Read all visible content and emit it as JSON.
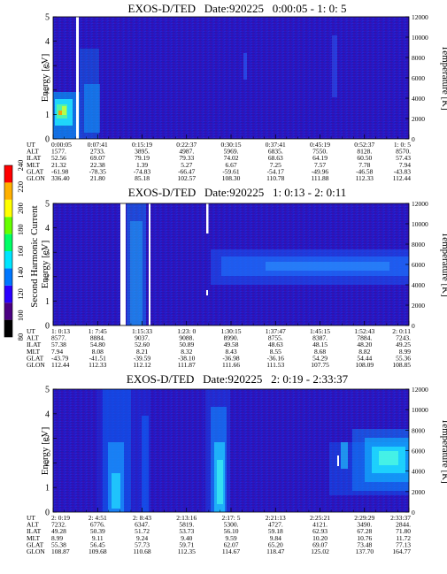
{
  "colorbar": {
    "label": "Second Harmonic Current",
    "ticks": [
      "80",
      "100",
      "120",
      "140",
      "160",
      "180",
      "200",
      "220",
      "240"
    ],
    "min": 80,
    "max": 240,
    "colors": [
      "#000000",
      "#4b0082",
      "#2a00ff",
      "#0077ff",
      "#00e5ff",
      "#00ff66",
      "#66ff00",
      "#ffff00",
      "#ffb000",
      "#ff0000"
    ]
  },
  "panel_labels": {
    "ylabel_left": "Energy [eV]",
    "ylabel_right": "Temperature [K]",
    "eph_rows": [
      "UT",
      "ALT",
      "ILAT",
      "MLT",
      "GLAT",
      "GLON"
    ]
  },
  "chart_data": [
    {
      "type": "heatmap",
      "title": "EXOS-D/TED   Date:920225   0:00:05 - 1: 0: 5",
      "ylim": [
        0,
        5
      ],
      "yticks": [
        "0",
        "1",
        "2",
        "3",
        "4",
        "5"
      ],
      "y2lim": [
        0,
        12000
      ],
      "y2ticks": [
        "0",
        "2000",
        "4000",
        "6000",
        "8000",
        "10000",
        "12000"
      ],
      "ephemeris": [
        [
          "0:00:05",
          "0:07:41",
          "0:15:19",
          "0:22:37",
          "0:30:15",
          "0:37:41",
          "0:45:19",
          "0:52:37",
          "1: 0: 5"
        ],
        [
          "1577.",
          "2733.",
          "3895.",
          "4987.",
          "5969.",
          "6835.",
          "7550.",
          "8128.",
          "8570."
        ],
        [
          "52.56",
          "69.07",
          "79.19",
          "79.33",
          "74.02",
          "68.63",
          "64.19",
          "60.50",
          "57.43"
        ],
        [
          "21.32",
          "22.38",
          "1.39",
          "5.27",
          "6.67",
          "7.25",
          "7.57",
          "7.78",
          "7.94"
        ],
        [
          "-61.98",
          "-78.35",
          "-74.83",
          "-66.47",
          "-59.61",
          "-54.17",
          "-49.96",
          "-46.58",
          "-43.83"
        ],
        [
          "336.40",
          "21.80",
          "85.18",
          "102.57",
          "108.30",
          "110.78",
          "111.88",
          "112.33",
          "112.44"
        ]
      ]
    },
    {
      "type": "heatmap",
      "title": "EXOS-D/TED   Date:920225   1: 0:13 - 2: 0:11",
      "ylim": [
        0,
        5
      ],
      "yticks": [
        "0",
        "1",
        "2",
        "3",
        "4",
        "5"
      ],
      "y2lim": [
        0,
        12000
      ],
      "y2ticks": [
        "0",
        "2000",
        "4000",
        "6000",
        "8000",
        "10000",
        "12000"
      ],
      "ephemeris": [
        [
          "1: 0:13",
          "1: 7:45",
          "1:15:33",
          "1:23: 0",
          "1:30:15",
          "1:37:47",
          "1:45:15",
          "1:52:43",
          "2: 0:11"
        ],
        [
          "8577.",
          "8884.",
          "9037.",
          "9088.",
          "8990.",
          "8755.",
          "8387.",
          "7884.",
          "7243."
        ],
        [
          "57.38",
          "54.80",
          "52.60",
          "50.89",
          "49.58",
          "48.63",
          "48.15",
          "48.20",
          "49.25"
        ],
        [
          "7.94",
          "8.08",
          "8.21",
          "8.32",
          "8.43",
          "8.55",
          "8.68",
          "8.82",
          "8.99"
        ],
        [
          "-43.79",
          "-41.51",
          "-39.59",
          "-38.10",
          "-36.98",
          "-36.16",
          "54.29",
          "54.44",
          "55.36"
        ],
        [
          "112.44",
          "112.33",
          "112.12",
          "111.87",
          "111.66",
          "111.53",
          "107.75",
          "108.09",
          "108.85"
        ]
      ]
    },
    {
      "type": "heatmap",
      "title": "EXOS-D/TED   Date:920225   2: 0:19 - 2:33:37",
      "ylim": [
        0,
        5
      ],
      "yticks": [
        "0",
        "1",
        "2",
        "3",
        "4",
        "5"
      ],
      "y2lim": [
        0,
        12000
      ],
      "y2ticks": [
        "0",
        "2000",
        "4000",
        "6000",
        "8000",
        "10000",
        "12000"
      ],
      "ephemeris": [
        [
          "2: 0:19",
          "2: 4:51",
          "2: 8:43",
          "2:13:16",
          "2:17: 5",
          "2:21:13",
          "2:25:21",
          "2:29:29",
          "2:33:37"
        ],
        [
          "7232.",
          "6776.",
          "6347.",
          "5819.",
          "5300.",
          "4727.",
          "4121.",
          "3490.",
          "2844."
        ],
        [
          "49.28",
          "50.39",
          "51.72",
          "53.73",
          "56.10",
          "59.18",
          "62.93",
          "67.28",
          "71.80"
        ],
        [
          "8.99",
          "9.11",
          "9.24",
          "9.40",
          "9.59",
          "9.84",
          "10.20",
          "10.76",
          "11.72"
        ],
        [
          "55.38",
          "56.45",
          "57.73",
          "59.71",
          "62.07",
          "65.20",
          "69.07",
          "73.48",
          "77.13"
        ],
        [
          "108.87",
          "109.68",
          "110.68",
          "112.35",
          "114.67",
          "118.47",
          "125.02",
          "137.70",
          "164.77"
        ]
      ]
    }
  ]
}
